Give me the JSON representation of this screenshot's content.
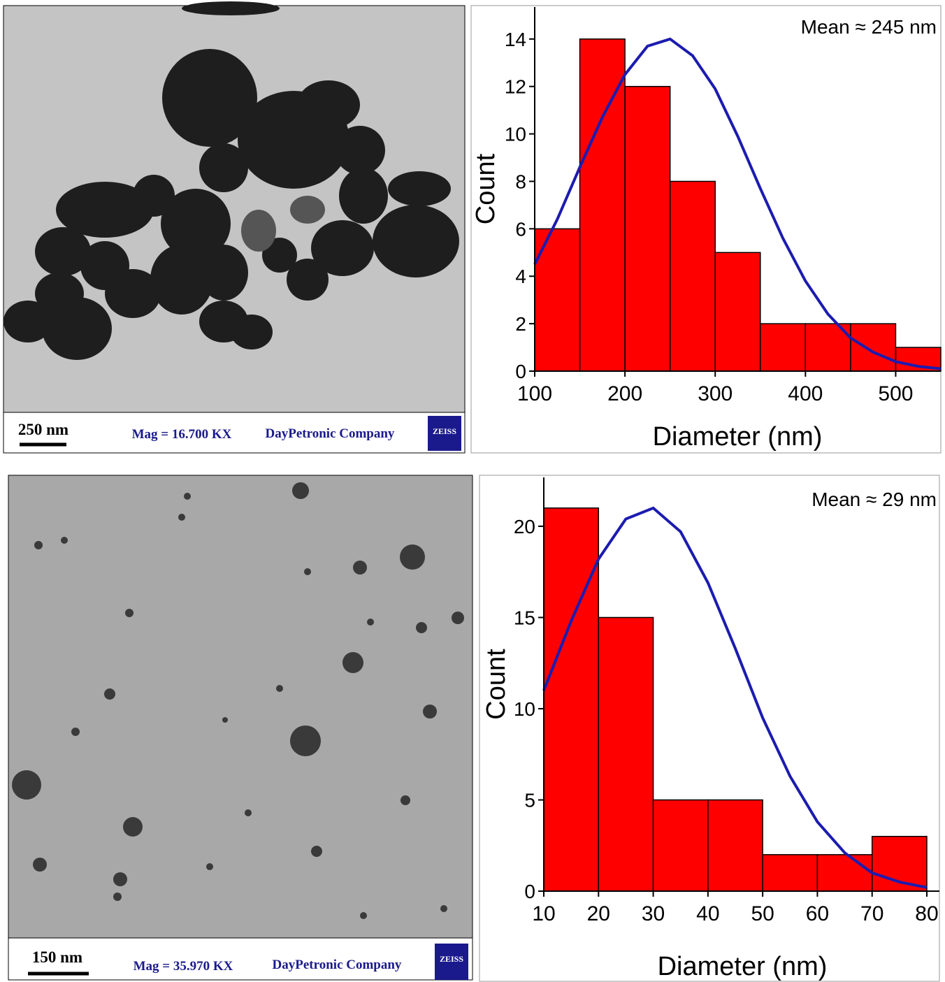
{
  "chart_data": [
    {
      "type": "histogram",
      "annotation": "Mean ≈ 245 nm",
      "xlabel": "Diameter (nm)",
      "ylabel": "Count",
      "bins": [
        100,
        150,
        200,
        250,
        300,
        350,
        400,
        450,
        500,
        550
      ],
      "values": [
        6,
        14,
        12,
        8,
        5,
        2,
        2,
        2,
        1
      ],
      "color": "#ff0000",
      "fit_curve": {
        "color": "#1c1cb0",
        "x": [
          100,
          125,
          150,
          175,
          200,
          225,
          250,
          275,
          300,
          325,
          350,
          375,
          400,
          425,
          450,
          475,
          500,
          525,
          550
        ],
        "values": [
          4.5,
          6.4,
          8.6,
          10.7,
          12.5,
          13.7,
          14.0,
          13.3,
          11.9,
          9.9,
          7.7,
          5.6,
          3.8,
          2.4,
          1.4,
          0.8,
          0.4,
          0.2,
          0.1
        ]
      },
      "xlim": [
        100,
        550
      ],
      "xticks": [
        100,
        200,
        300,
        400,
        500
      ],
      "ylim": [
        0,
        15.35
      ],
      "yticks": [
        0,
        2,
        4,
        6,
        8,
        10,
        12,
        14
      ]
    },
    {
      "type": "histogram",
      "annotation": "Mean ≈ 29 nm",
      "xlabel": "Diameter (nm)",
      "ylabel": "Count",
      "bins": [
        10,
        20,
        30,
        40,
        50,
        60,
        70,
        80
      ],
      "values": [
        21,
        15,
        5,
        5,
        2,
        2,
        3
      ],
      "color": "#ff0000",
      "fit_curve": {
        "color": "#1c1cb0",
        "x": [
          10,
          15,
          20,
          25,
          30,
          35,
          40,
          45,
          50,
          55,
          60,
          65,
          70,
          75,
          80
        ],
        "values": [
          11.0,
          14.8,
          18.2,
          20.4,
          21.0,
          19.7,
          16.9,
          13.3,
          9.5,
          6.3,
          3.8,
          2.1,
          1.0,
          0.5,
          0.2
        ]
      },
      "xlim": [
        10,
        82.3
      ],
      "xticks": [
        10,
        20,
        30,
        40,
        50,
        60,
        70,
        80
      ],
      "ylim": [
        0,
        22.68
      ],
      "yticks": [
        0,
        5,
        10,
        15,
        20
      ]
    }
  ],
  "images": [
    {
      "scale_label": "250 nm",
      "magnification": "Mag = 16.700 KX",
      "company": "DayPetronic Company",
      "brand": "ZEISS"
    },
    {
      "scale_label": "150 nm",
      "magnification": "Mag = 35.970 KX",
      "company": "DayPetronic Company",
      "brand": "ZEISS"
    }
  ]
}
